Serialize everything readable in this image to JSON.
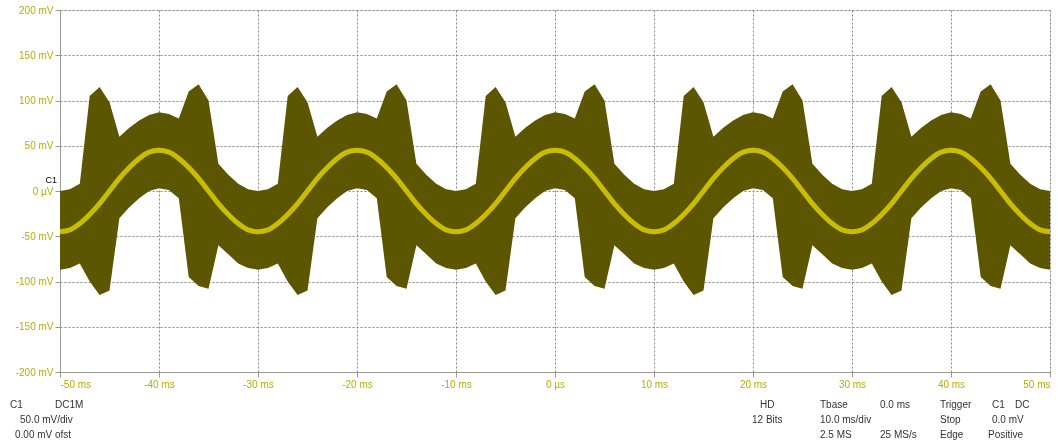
{
  "chart_data": {
    "type": "line",
    "x": [
      -50,
      -49,
      -48,
      -47,
      -46,
      -45,
      -44,
      -43,
      -42,
      -41,
      -40,
      -39,
      -38,
      -37,
      -36,
      -35,
      -34,
      -33,
      -32,
      -31,
      -30,
      -29,
      -28,
      -27,
      -26,
      -25,
      -24,
      -23,
      -22,
      -21,
      -20,
      -19,
      -18,
      -17,
      -16,
      -15,
      -14,
      -13,
      -12,
      -11,
      -10,
      -9,
      -8,
      -7,
      -6,
      -5,
      -4,
      -3,
      -2,
      -1,
      0,
      1,
      2,
      3,
      4,
      5,
      6,
      7,
      8,
      9,
      10,
      11,
      12,
      13,
      14,
      15,
      16,
      17,
      18,
      19,
      20,
      21,
      22,
      23,
      24,
      25,
      26,
      27,
      28,
      29,
      30,
      31,
      32,
      33,
      34,
      35,
      36,
      37,
      38,
      39,
      40,
      41,
      42,
      43,
      44,
      45,
      46,
      47,
      48,
      49,
      50
    ],
    "series": [
      {
        "color": "#c8bd00",
        "values": [
          -45,
          -43,
          -36,
          -26,
          -14,
          0,
          14,
          26,
          36,
          43,
          45,
          43,
          36,
          26,
          14,
          0,
          -14,
          -26,
          -36,
          -43,
          -45,
          -43,
          -36,
          -26,
          -14,
          0,
          14,
          26,
          36,
          43,
          45,
          43,
          36,
          26,
          14,
          0,
          -14,
          -26,
          -36,
          -43,
          -45,
          -43,
          -36,
          -26,
          -14,
          0,
          14,
          26,
          36,
          43,
          45,
          43,
          36,
          26,
          14,
          0,
          -14,
          -26,
          -36,
          -43,
          -45,
          -43,
          -36,
          -26,
          -14,
          0,
          14,
          26,
          36,
          43,
          45,
          43,
          36,
          26,
          14,
          0,
          -14,
          -26,
          -36,
          -43,
          -45,
          -43,
          -36,
          -26,
          -14,
          0,
          14,
          26,
          36,
          43,
          45,
          43,
          36,
          26,
          14,
          0,
          -14,
          -26,
          -36,
          -43,
          -45
        ],
        "upper": [
          0,
          2,
          8,
          105,
          115,
          98,
          60,
          70,
          78,
          84,
          87,
          85,
          80,
          110,
          118,
          100,
          30,
          18,
          8,
          2,
          0,
          2,
          8,
          105,
          115,
          98,
          60,
          70,
          78,
          84,
          87,
          85,
          80,
          110,
          118,
          100,
          30,
          18,
          8,
          2,
          0,
          2,
          8,
          105,
          115,
          98,
          60,
          70,
          78,
          84,
          87,
          85,
          80,
          110,
          118,
          100,
          30,
          18,
          8,
          2,
          0,
          2,
          8,
          105,
          115,
          98,
          60,
          70,
          78,
          84,
          87,
          85,
          80,
          110,
          118,
          100,
          30,
          18,
          8,
          2,
          0,
          2,
          8,
          105,
          115,
          98,
          60,
          70,
          78,
          84,
          87,
          85,
          80,
          110,
          118,
          100,
          30,
          18,
          8,
          2,
          0
        ],
        "lower": [
          -87,
          -85,
          -80,
          -100,
          -115,
          -110,
          -30,
          -18,
          -8,
          0,
          3,
          1,
          -8,
          -95,
          -105,
          -108,
          -60,
          -70,
          -80,
          -85,
          -87,
          -85,
          -80,
          -100,
          -115,
          -110,
          -30,
          -18,
          -8,
          0,
          3,
          1,
          -8,
          -95,
          -105,
          -108,
          -60,
          -70,
          -80,
          -85,
          -87,
          -85,
          -80,
          -100,
          -115,
          -110,
          -30,
          -18,
          -8,
          0,
          3,
          1,
          -8,
          -95,
          -105,
          -108,
          -60,
          -70,
          -80,
          -85,
          -87,
          -85,
          -80,
          -100,
          -115,
          -110,
          -30,
          -18,
          -8,
          0,
          3,
          1,
          -8,
          -95,
          -105,
          -108,
          -60,
          -70,
          -80,
          -85,
          -87,
          -85,
          -80,
          -100,
          -115,
          -110,
          -30,
          -18,
          -8,
          0,
          3,
          1,
          -8,
          -95,
          -105,
          -108,
          -60,
          -70,
          -80,
          -85,
          -87
        ]
      }
    ],
    "xlim": [
      -50,
      50
    ],
    "xticks": [
      {
        "value": -50,
        "label": "-50 ms"
      },
      {
        "value": -40,
        "label": "-40 ms"
      },
      {
        "value": -30,
        "label": "-30 ms"
      },
      {
        "value": -20,
        "label": "-20 ms"
      },
      {
        "value": -10,
        "label": "-10 ms"
      },
      {
        "value": 0,
        "label": "0 µs"
      },
      {
        "value": 10,
        "label": "10 ms"
      },
      {
        "value": 20,
        "label": "20 ms"
      },
      {
        "value": 30,
        "label": "30 ms"
      },
      {
        "value": 40,
        "label": "40 ms"
      },
      {
        "value": 50,
        "label": "50 ms"
      }
    ],
    "ylim": [
      -200,
      200
    ],
    "yticks": [
      {
        "value": -200,
        "label": "-200 mV"
      },
      {
        "value": -150,
        "label": "-150 mV"
      },
      {
        "value": -100,
        "label": "-100 mV"
      },
      {
        "value": -50,
        "label": "-50 mV"
      },
      {
        "value": 0,
        "label": "0 µV"
      },
      {
        "value": 50,
        "label": "50 mV"
      },
      {
        "value": 100,
        "label": "100 mV"
      },
      {
        "value": 150,
        "label": "150 mV"
      },
      {
        "value": 200,
        "label": "200 mV"
      }
    ],
    "grid": true,
    "line_style": "solid",
    "marker": "none",
    "annotations": [
      {
        "text": "C1",
        "x": -50,
        "y": 0
      },
      "C1",
      "DC1M",
      "50.0 mV/div",
      "0.00 mV ofst",
      "HD",
      "12 Bits",
      "Tbase",
      "0.0 ms",
      "10.0 ms/div",
      "2.5 MS",
      "25 MS/s",
      "Trigger",
      "C1",
      "DC",
      "Stop",
      "0.0 mV",
      "Edge",
      "Positive"
    ]
  }
}
